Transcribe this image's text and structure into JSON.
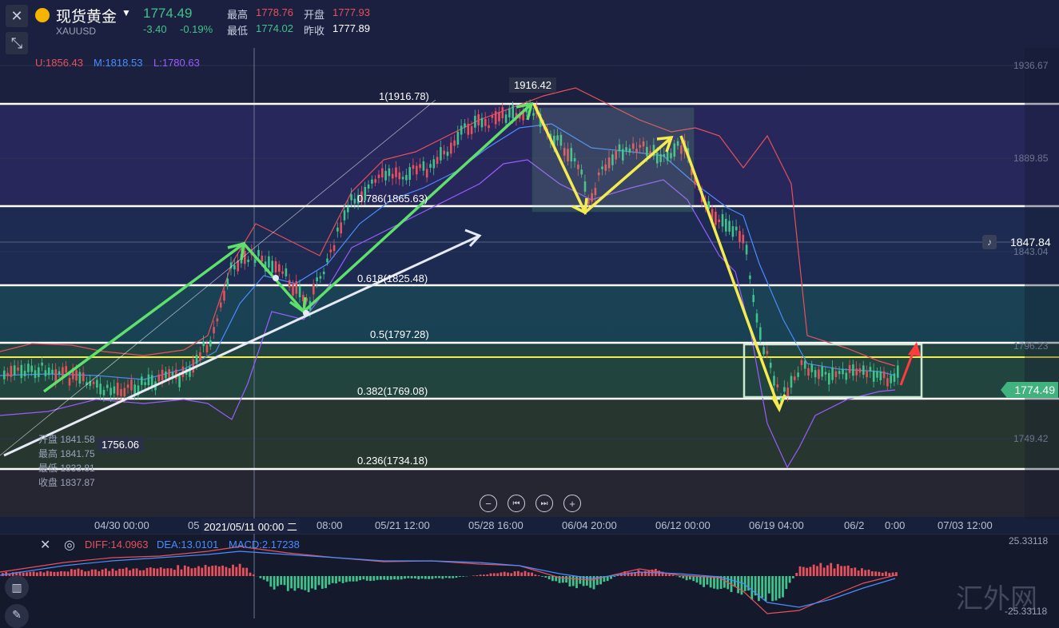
{
  "header": {
    "title": "现货黄金",
    "symbol": "XAUUSD",
    "price": "1774.49",
    "change": "-3.40",
    "change_pct": "-0.19%",
    "high_label": "最高",
    "high": "1778.76",
    "open_label": "开盘",
    "open": "1777.93",
    "low_label": "最低",
    "low": "1774.02",
    "prev_label": "昨收",
    "prev": "1777.89"
  },
  "bollinger": {
    "u": "U:1856.43",
    "m": "M:1818.53",
    "l": "L:1780.63"
  },
  "price_axis": [
    "1936.67",
    "1889.85",
    "1843.04",
    "1796.23",
    "1749.42"
  ],
  "price_tags": {
    "alert": "1847.84",
    "current": "1774.49",
    "peak": "1916.42",
    "trough": "1756.06"
  },
  "fib_levels": [
    {
      "label": "1(1916.78)"
    },
    {
      "label": "0.786(1865.63)"
    },
    {
      "label": "0.618(1825.48)"
    },
    {
      "label": "0.5(1797.28)"
    },
    {
      "label": "0.382(1769.08)"
    },
    {
      "label": "0.236(1734.18)"
    }
  ],
  "crosshair_ohlc": {
    "open": "开盘 1841.58",
    "high": "最高 1841.75",
    "low": "最低 1833.81",
    "close": "收盘 1837.87"
  },
  "x_axis": [
    "04/30 00:00",
    "05",
    "08:00",
    "05/21 12:00",
    "05/28 16:00",
    "06/04 20:00",
    "06/12 00:00",
    "06/19 04:00",
    "06/2",
    "0:00",
    "07/03 12:00"
  ],
  "crosshair_time": "2021/05/11 00:00 二",
  "macd": {
    "diff": "DIFF:14.0963",
    "dea": "DEA:13.0101",
    "macd": "MACD:2.17238",
    "top": "25.33118",
    "bottom": "-25.33118"
  },
  "nav_buttons": [
    "−",
    "⏮",
    "⏭",
    "+"
  ],
  "watermark": "汇外网",
  "colors": {
    "up": "#e8505b",
    "down": "#3fc38a",
    "accent_green": "#5fe06a",
    "accent_yellow": "#f4ec4e"
  }
}
